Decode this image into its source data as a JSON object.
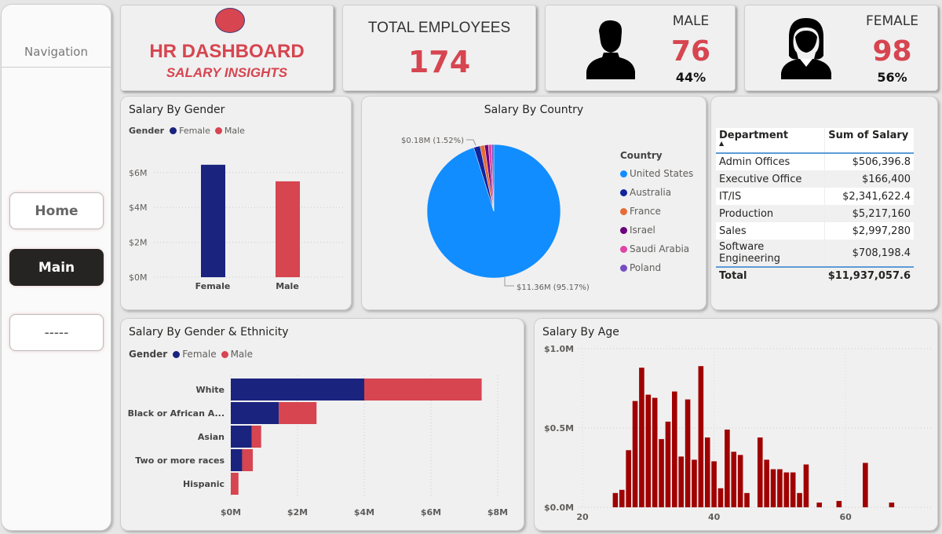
{
  "sidebar": {
    "title": "Navigation",
    "buttons": [
      {
        "label": "Home"
      },
      {
        "label": "Main",
        "active": true
      },
      {
        "label": "-----"
      }
    ]
  },
  "header": {
    "title": "HR DASHBOARD",
    "subtitle": "SALARY INSIGHTS",
    "logo_color": "#d64550"
  },
  "kpis": {
    "total": {
      "label": "TOTAL EMPLOYEES",
      "value": "174"
    },
    "male": {
      "label": "MALE",
      "value": "76",
      "pct": "44%"
    },
    "female": {
      "label": "FEMALE",
      "value": "98",
      "pct": "56%"
    }
  },
  "colors": {
    "female": "#1a237e",
    "male": "#d64550",
    "age_bar": "#a00000",
    "accent": "#d64550"
  },
  "table": {
    "headers": [
      "Department",
      "Sum of Salary"
    ],
    "rows": [
      [
        "Admin Offices",
        "$506,396.8"
      ],
      [
        "Executive Office",
        "$166,400"
      ],
      [
        "IT/IS",
        "$2,341,622.4"
      ],
      [
        "Production",
        "$5,217,160"
      ],
      [
        "Sales",
        "$2,997,280"
      ],
      [
        "Software Engineering",
        "$708,198.4"
      ]
    ],
    "total": [
      "Total",
      "$11,937,057.6"
    ]
  },
  "chart_data": [
    {
      "type": "bar",
      "title": "Salary By Gender",
      "legend_title": "Gender",
      "categories": [
        "Female",
        "Male"
      ],
      "values": [
        6.45,
        5.5
      ],
      "unit": "$M",
      "yticks": [
        "$0M",
        "$2M",
        "$4M",
        "$6M"
      ],
      "ylim": [
        0,
        6.8
      ],
      "grid": true,
      "legend": "top-left"
    },
    {
      "type": "pie",
      "title": "Salary By Country",
      "legend_title": "Country",
      "legend": "right",
      "slices": [
        {
          "name": "United States",
          "value": 95.17,
          "color": "#118dff"
        },
        {
          "name": "Australia",
          "value": 1.52,
          "color": "#12239e"
        },
        {
          "name": "France",
          "value": 1.1,
          "color": "#e66c37"
        },
        {
          "name": "Israel",
          "value": 0.9,
          "color": "#6b007b"
        },
        {
          "name": "Saudi Arabia",
          "value": 0.8,
          "color": "#e044a7"
        },
        {
          "name": "Poland",
          "value": 0.51,
          "color": "#744ec2"
        }
      ],
      "labels": [
        "$0.18M (1.52%)",
        "$11.36M (95.17%)"
      ]
    },
    {
      "type": "bar",
      "orientation": "horizontal",
      "stacked": true,
      "title": "Salary By Gender & Ethnicity",
      "legend_title": "Gender",
      "categories": [
        "White",
        "Black or African A...",
        "Asian",
        "Two or more races",
        "Hispanic"
      ],
      "series": [
        {
          "name": "Female",
          "values": [
            4.0,
            1.44,
            0.63,
            0.34,
            0
          ]
        },
        {
          "name": "Male",
          "values": [
            3.52,
            1.13,
            0.28,
            0.32,
            0.23
          ]
        }
      ],
      "xticks": [
        "$0M",
        "$2M",
        "$4M",
        "$6M",
        "$8M"
      ],
      "xlim": [
        0,
        8
      ],
      "grid": true,
      "legend": "top-left"
    },
    {
      "type": "bar",
      "title": "Salary By Age",
      "x": [
        25,
        26,
        27,
        28,
        29,
        30,
        31,
        32,
        33,
        34,
        35,
        36,
        37,
        38,
        39,
        40,
        41,
        42,
        43,
        44,
        45,
        47,
        48,
        49,
        50,
        51,
        52,
        53,
        54,
        56,
        59,
        63,
        67
      ],
      "values": [
        0.09,
        0.11,
        0.36,
        0.67,
        0.88,
        0.71,
        0.69,
        0.43,
        0.54,
        0.73,
        0.32,
        0.68,
        0.3,
        0.89,
        0.44,
        0.29,
        0.12,
        0.49,
        0.35,
        0.33,
        0.09,
        0.44,
        0.3,
        0.24,
        0.24,
        0.22,
        0.22,
        0.09,
        0.27,
        0.03,
        0.04,
        0.28,
        0.03
      ],
      "unit": "$M",
      "xticks": [
        "20",
        "40",
        "60"
      ],
      "yticks": [
        "$0.0M",
        "$0.5M",
        "$1.0M"
      ],
      "ylim": [
        0,
        1.0
      ],
      "grid": true
    }
  ]
}
